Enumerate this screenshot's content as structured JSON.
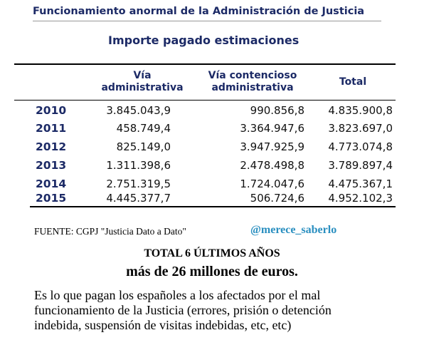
{
  "header": {
    "title": "Funcionamiento anormal de la Administración de Justicia",
    "subtitle": "Importe pagado estimaciones"
  },
  "table": {
    "columns": [
      [],
      [
        "Vía",
        "administrativa"
      ],
      [
        "Vía contencioso",
        "administrativa"
      ],
      [
        "Total"
      ]
    ],
    "rows": [
      [
        "2010",
        "3.845.043,9",
        "990.856,8",
        "4.835.900,8"
      ],
      [
        "2011",
        "458.749,4",
        "3.364.947,6",
        "3.823.697,0"
      ],
      [
        "2012",
        "825.149,0",
        "3.947.925,9",
        "4.773.074,8"
      ],
      [
        "2013",
        "1.311.398,6",
        "2.478.498,8",
        "3.789.897,4"
      ],
      [
        "2014",
        "2.751.319,5",
        "1.724.047,6",
        "4.475.367,1"
      ],
      [
        "2015",
        "4.445.377,7",
        "506.724,6",
        "4.952.102,3"
      ]
    ]
  },
  "footer": {
    "source": "FUENTE: CGPJ \"Justicia Dato a Dato\"",
    "handle": "@merece_saberlo"
  },
  "summary": {
    "label": "TOTAL 6 ÚLTIMOS AÑOS",
    "amount": "más de 26 millones de euros.",
    "description": [
      "Es lo que pagan los españoles a los afectados por el mal",
      "funcionamiento de la Justicia (errores, prisión o detención",
      "indebida, suspensión de visitas indebidas, etc, etc)"
    ]
  }
}
